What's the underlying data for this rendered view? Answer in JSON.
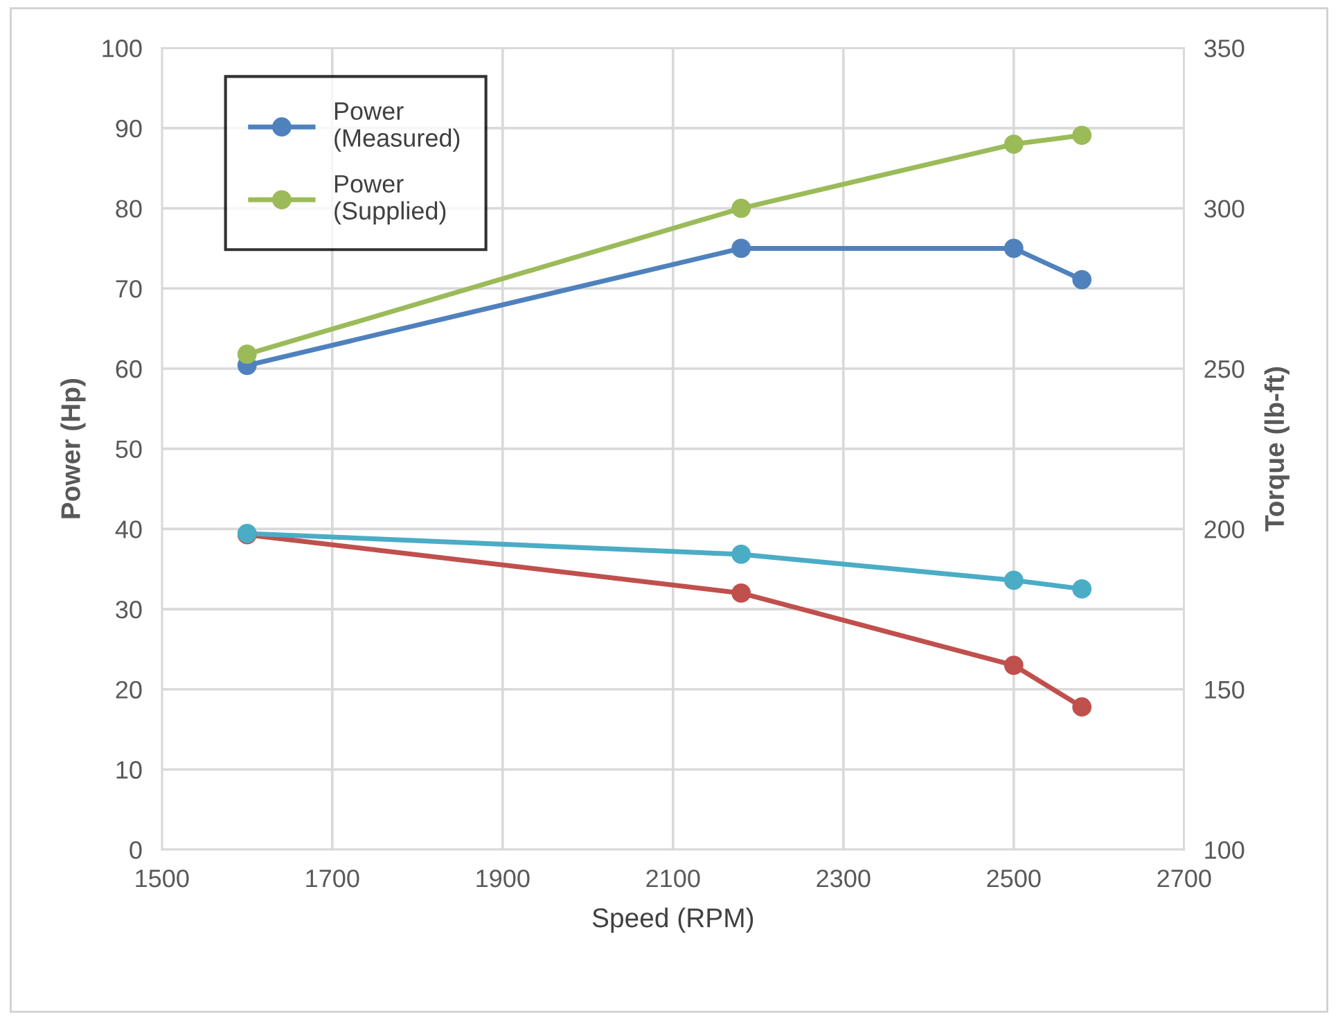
{
  "chart_data": {
    "type": "line",
    "xlabel": "Speed (RPM)",
    "ylabel": "Power (Hp)",
    "y2label": "Torque (lb-ft)",
    "xlim": [
      1500,
      2700
    ],
    "xticks": [
      1500,
      1700,
      1900,
      2100,
      2300,
      2500,
      2700
    ],
    "ylim": [
      0,
      100
    ],
    "yticks": [
      0,
      10,
      20,
      30,
      40,
      50,
      60,
      70,
      80,
      90,
      100
    ],
    "y2lim": [
      100,
      350
    ],
    "y2ticks": [
      100,
      150,
      200,
      250,
      300,
      350
    ],
    "grid": true,
    "legend": "top left",
    "marker": "circle",
    "line_style": "solid",
    "series": [
      {
        "name": "Power\n(Measured)",
        "color": "#4f81bd",
        "x": [
          1600,
          2180,
          2500,
          2580
        ],
        "values": [
          60.4,
          75,
          75,
          71.1
        ]
      },
      {
        "name": "Power\n(Supplied)",
        "color": "#9bbb59",
        "x": [
          1600,
          2180,
          2500,
          2580
        ],
        "values": [
          61.8,
          80,
          88,
          89.1
        ]
      },
      {
        "color": "#c0504d",
        "axis": "y2",
        "x": [
          1600,
          2180,
          2500,
          2580
        ],
        "values": [
          198.2,
          180,
          157.5,
          144.5
        ]
      },
      {
        "color": "#4bacc6",
        "axis": "y2",
        "x": [
          1600,
          2180,
          2500,
          2580
        ],
        "values": [
          198.6,
          192.1,
          184,
          181.3
        ]
      }
    ]
  }
}
